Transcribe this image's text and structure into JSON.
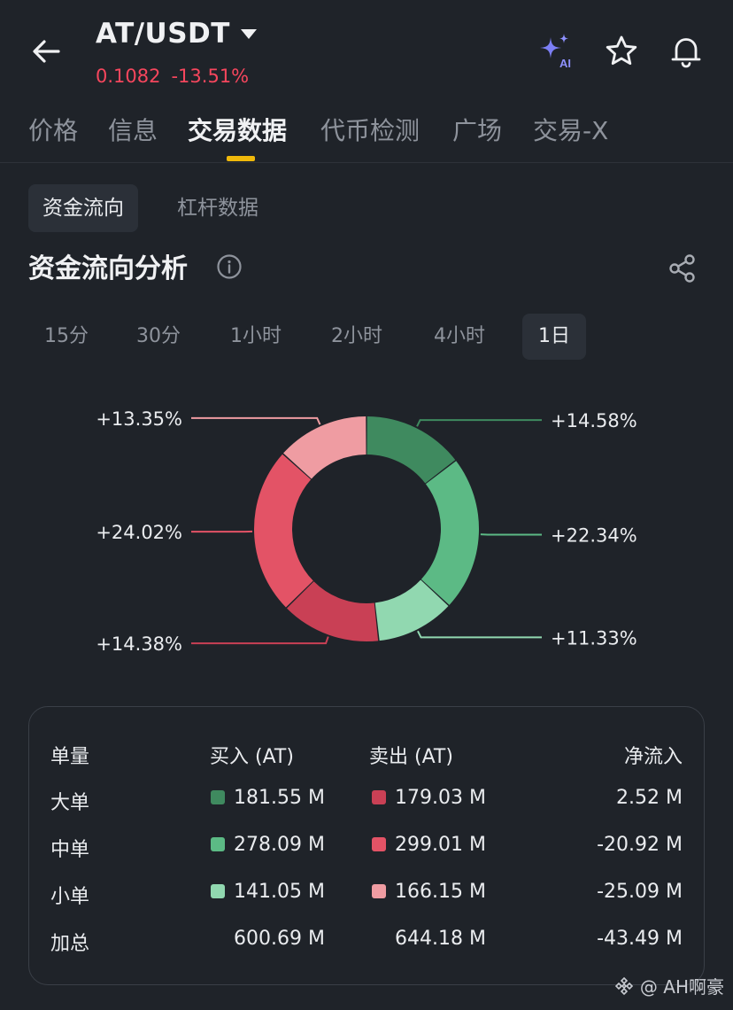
{
  "header": {
    "pair": "AT/USDT",
    "price": "0.1082",
    "change": "-13.51%",
    "ai_badge": "AI"
  },
  "tabs": [
    "价格",
    "信息",
    "交易数据",
    "代币检测",
    "广场",
    "交易-X"
  ],
  "active_tab": "交易数据",
  "subtabs": [
    "资金流向",
    "杠杆数据"
  ],
  "section": {
    "title": "资金流向分析"
  },
  "periods": [
    "15分",
    "30分",
    "1小时",
    "2小时",
    "4小时",
    "1日"
  ],
  "active_period": "1日",
  "colors": {
    "large_buy": "#3f8a5f",
    "medium_buy": "#5cba85",
    "small_buy": "#91d8b0",
    "large_sell": "#c94055",
    "medium_sell": "#e35366",
    "small_sell": "#ef9ca2",
    "price_down": "#f6465d",
    "accent": "#f0b90b"
  },
  "chart_data": {
    "type": "pie",
    "variant": "donut",
    "segments": [
      {
        "label": "+14.58%",
        "value": 14.58,
        "color": "#3f8a5f"
      },
      {
        "label": "+22.34%",
        "value": 22.34,
        "color": "#5cba85"
      },
      {
        "label": "+11.33%",
        "value": 11.33,
        "color": "#91d8b0"
      },
      {
        "label": "+14.38%",
        "value": 14.38,
        "color": "#c94055"
      },
      {
        "label": "+24.02%",
        "value": 24.02,
        "color": "#e35366"
      },
      {
        "label": "+13.35%",
        "value": 13.35,
        "color": "#ef9ca2"
      }
    ]
  },
  "table": {
    "headers": [
      "单量",
      "买入 (AT)",
      "卖出 (AT)",
      "净流入"
    ],
    "rows": [
      {
        "label": "大单",
        "buy": "181.55 M",
        "sell": "179.03 M",
        "net": "2.52 M",
        "buy_color": "#3f8a5f",
        "sell_color": "#c94055"
      },
      {
        "label": "中单",
        "buy": "278.09 M",
        "sell": "299.01 M",
        "net": "-20.92 M",
        "buy_color": "#5cba85",
        "sell_color": "#e35366"
      },
      {
        "label": "小单",
        "buy": "141.05 M",
        "sell": "166.15 M",
        "net": "-25.09 M",
        "buy_color": "#91d8b0",
        "sell_color": "#ef9ca2"
      }
    ],
    "total": {
      "label": "加总",
      "buy": "600.69 M",
      "sell": "644.18 M",
      "net": "-43.49 M"
    }
  },
  "watermark": "@ AH啊豪"
}
